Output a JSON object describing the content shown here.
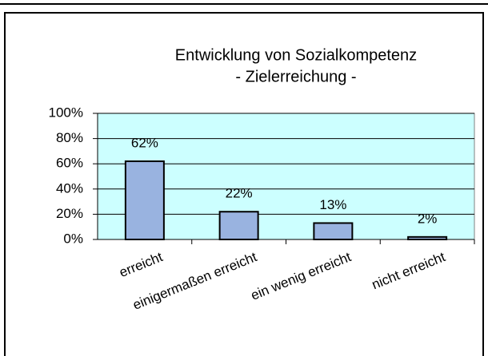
{
  "chart_data": {
    "type": "bar",
    "title": "Entwicklung von Sozialkompetenz",
    "subtitle": "- Zielerreichung -",
    "categories": [
      "erreicht",
      "einigermaßen erreicht",
      "ein wenig erreicht",
      "nicht erreicht"
    ],
    "values": [
      62,
      22,
      13,
      2
    ],
    "value_labels": [
      "62%",
      "22%",
      "13%",
      "2%"
    ],
    "color": "#99b3e0",
    "ylim": [
      0,
      100
    ],
    "yticks": [
      {
        "value": 0,
        "label": "0%"
      },
      {
        "value": 20,
        "label": "20%"
      },
      {
        "value": 40,
        "label": "40%"
      },
      {
        "value": 60,
        "label": "60%"
      },
      {
        "value": 80,
        "label": "80%"
      },
      {
        "value": 100,
        "label": "100%"
      }
    ],
    "grid": true
  }
}
